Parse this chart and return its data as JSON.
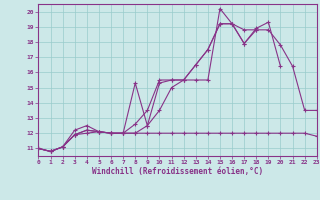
{
  "xlabel": "Windchill (Refroidissement éolien,°C)",
  "background_color": "#cce8e8",
  "grid_color": "#99cccc",
  "line_color": "#883388",
  "xlim": [
    0,
    23
  ],
  "ylim": [
    10.5,
    20.5
  ],
  "xticks": [
    0,
    1,
    2,
    3,
    4,
    5,
    6,
    7,
    8,
    9,
    10,
    11,
    12,
    13,
    14,
    15,
    16,
    17,
    18,
    19,
    20,
    21,
    22,
    23
  ],
  "yticks": [
    11,
    12,
    13,
    14,
    15,
    16,
    17,
    18,
    19,
    20
  ],
  "series": [
    {
      "x": [
        0,
        1,
        2,
        3,
        4,
        5,
        6,
        7,
        8,
        9,
        10,
        11,
        12,
        13,
        14,
        15,
        16,
        17,
        18,
        19,
        20
      ],
      "y": [
        11.0,
        10.8,
        11.1,
        11.9,
        12.2,
        12.1,
        12.0,
        12.0,
        12.6,
        13.5,
        15.5,
        15.5,
        15.5,
        16.5,
        17.5,
        19.2,
        19.2,
        17.9,
        18.9,
        19.3,
        16.4
      ]
    },
    {
      "x": [
        0,
        1,
        2,
        3,
        4,
        5,
        6,
        7,
        8,
        9,
        10,
        11,
        12,
        13,
        14,
        15,
        16,
        17,
        18
      ],
      "y": [
        11.0,
        10.8,
        11.1,
        11.9,
        12.2,
        12.1,
        12.0,
        12.0,
        15.3,
        12.5,
        15.3,
        15.5,
        15.5,
        15.5,
        15.5,
        20.2,
        19.2,
        17.9,
        18.8
      ]
    },
    {
      "x": [
        0,
        1,
        2,
        3,
        4,
        5,
        6,
        7,
        8,
        9,
        10,
        11,
        12,
        13,
        14,
        15,
        16,
        17,
        18,
        19,
        20,
        21,
        22,
        23
      ],
      "y": [
        11.0,
        10.8,
        11.1,
        12.2,
        12.5,
        12.1,
        12.0,
        12.0,
        12.0,
        12.0,
        12.0,
        12.0,
        12.0,
        12.0,
        12.0,
        12.0,
        12.0,
        12.0,
        12.0,
        12.0,
        12.0,
        12.0,
        12.0,
        11.8
      ]
    },
    {
      "x": [
        0,
        1,
        2,
        3,
        4,
        5,
        6,
        7,
        8,
        9,
        10,
        11,
        12,
        13,
        14,
        15,
        16,
        17,
        18,
        19,
        20,
        21,
        22,
        23
      ],
      "y": [
        11.0,
        10.8,
        11.1,
        11.9,
        12.0,
        12.1,
        12.0,
        12.0,
        12.0,
        12.5,
        13.5,
        15.0,
        15.5,
        16.5,
        17.5,
        19.2,
        19.2,
        18.8,
        18.8,
        18.8,
        17.8,
        16.4,
        13.5,
        13.5
      ]
    }
  ]
}
